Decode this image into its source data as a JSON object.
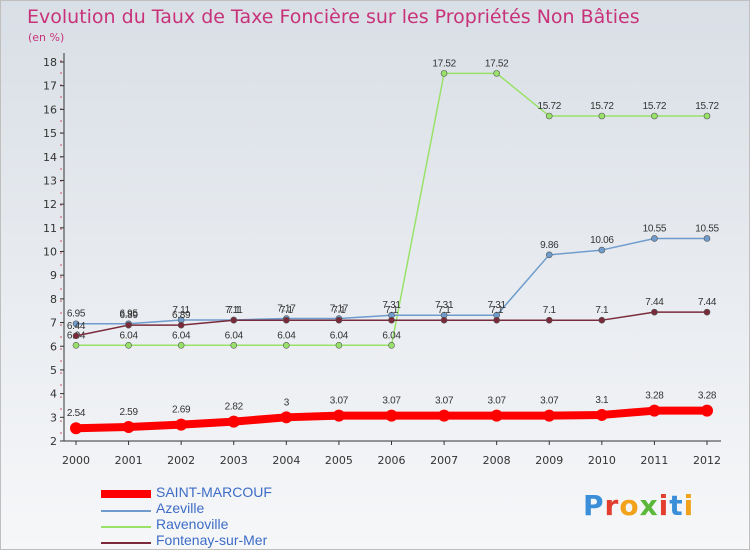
{
  "title": "Evolution du Taux de Taxe Foncière sur les Propriétés Non Bâties",
  "unit_label": "(en %)",
  "logo_text": "Proxiti",
  "chart_data": {
    "type": "line",
    "title": "Evolution du Taux de Taxe Foncière sur les Propriétés Non Bâties",
    "ylabel": "(en %)",
    "xlabel": "",
    "ylim": [
      2,
      18
    ],
    "yticks": [
      2,
      3,
      4,
      5,
      6,
      7,
      8,
      9,
      10,
      11,
      12,
      13,
      14,
      15,
      16,
      17,
      18
    ],
    "categories": [
      "2000",
      "2001",
      "2002",
      "2003",
      "2004",
      "2005",
      "2006",
      "2007",
      "2008",
      "2009",
      "2010",
      "2011",
      "2012"
    ],
    "grid": false,
    "legend_position": "bottom-left",
    "series": [
      {
        "name": "SAINT-MARCOUF",
        "color": "#ff0000",
        "values": [
          2.54,
          2.59,
          2.69,
          2.82,
          3,
          3.07,
          3.07,
          3.07,
          3.07,
          3.07,
          3.1,
          3.28,
          3.28
        ]
      },
      {
        "name": "Azeville",
        "color": "#6f9ccc",
        "values": [
          6.95,
          6.95,
          7.11,
          7.11,
          7.17,
          7.17,
          7.31,
          7.31,
          7.31,
          9.86,
          10.06,
          10.55,
          10.55
        ]
      },
      {
        "name": "Ravenoville",
        "color": "#99e26a",
        "values": [
          6.04,
          6.04,
          6.04,
          6.04,
          6.04,
          6.04,
          6.04,
          17.52,
          17.52,
          15.72,
          15.72,
          15.72,
          15.72
        ]
      },
      {
        "name": "Fontenay-sur-Mer",
        "color": "#7a2a3a",
        "values": [
          6.44,
          6.89,
          6.89,
          7.1,
          7.1,
          7.1,
          7.1,
          7.1,
          7.1,
          7.1,
          7.1,
          7.44,
          7.44
        ]
      }
    ]
  }
}
